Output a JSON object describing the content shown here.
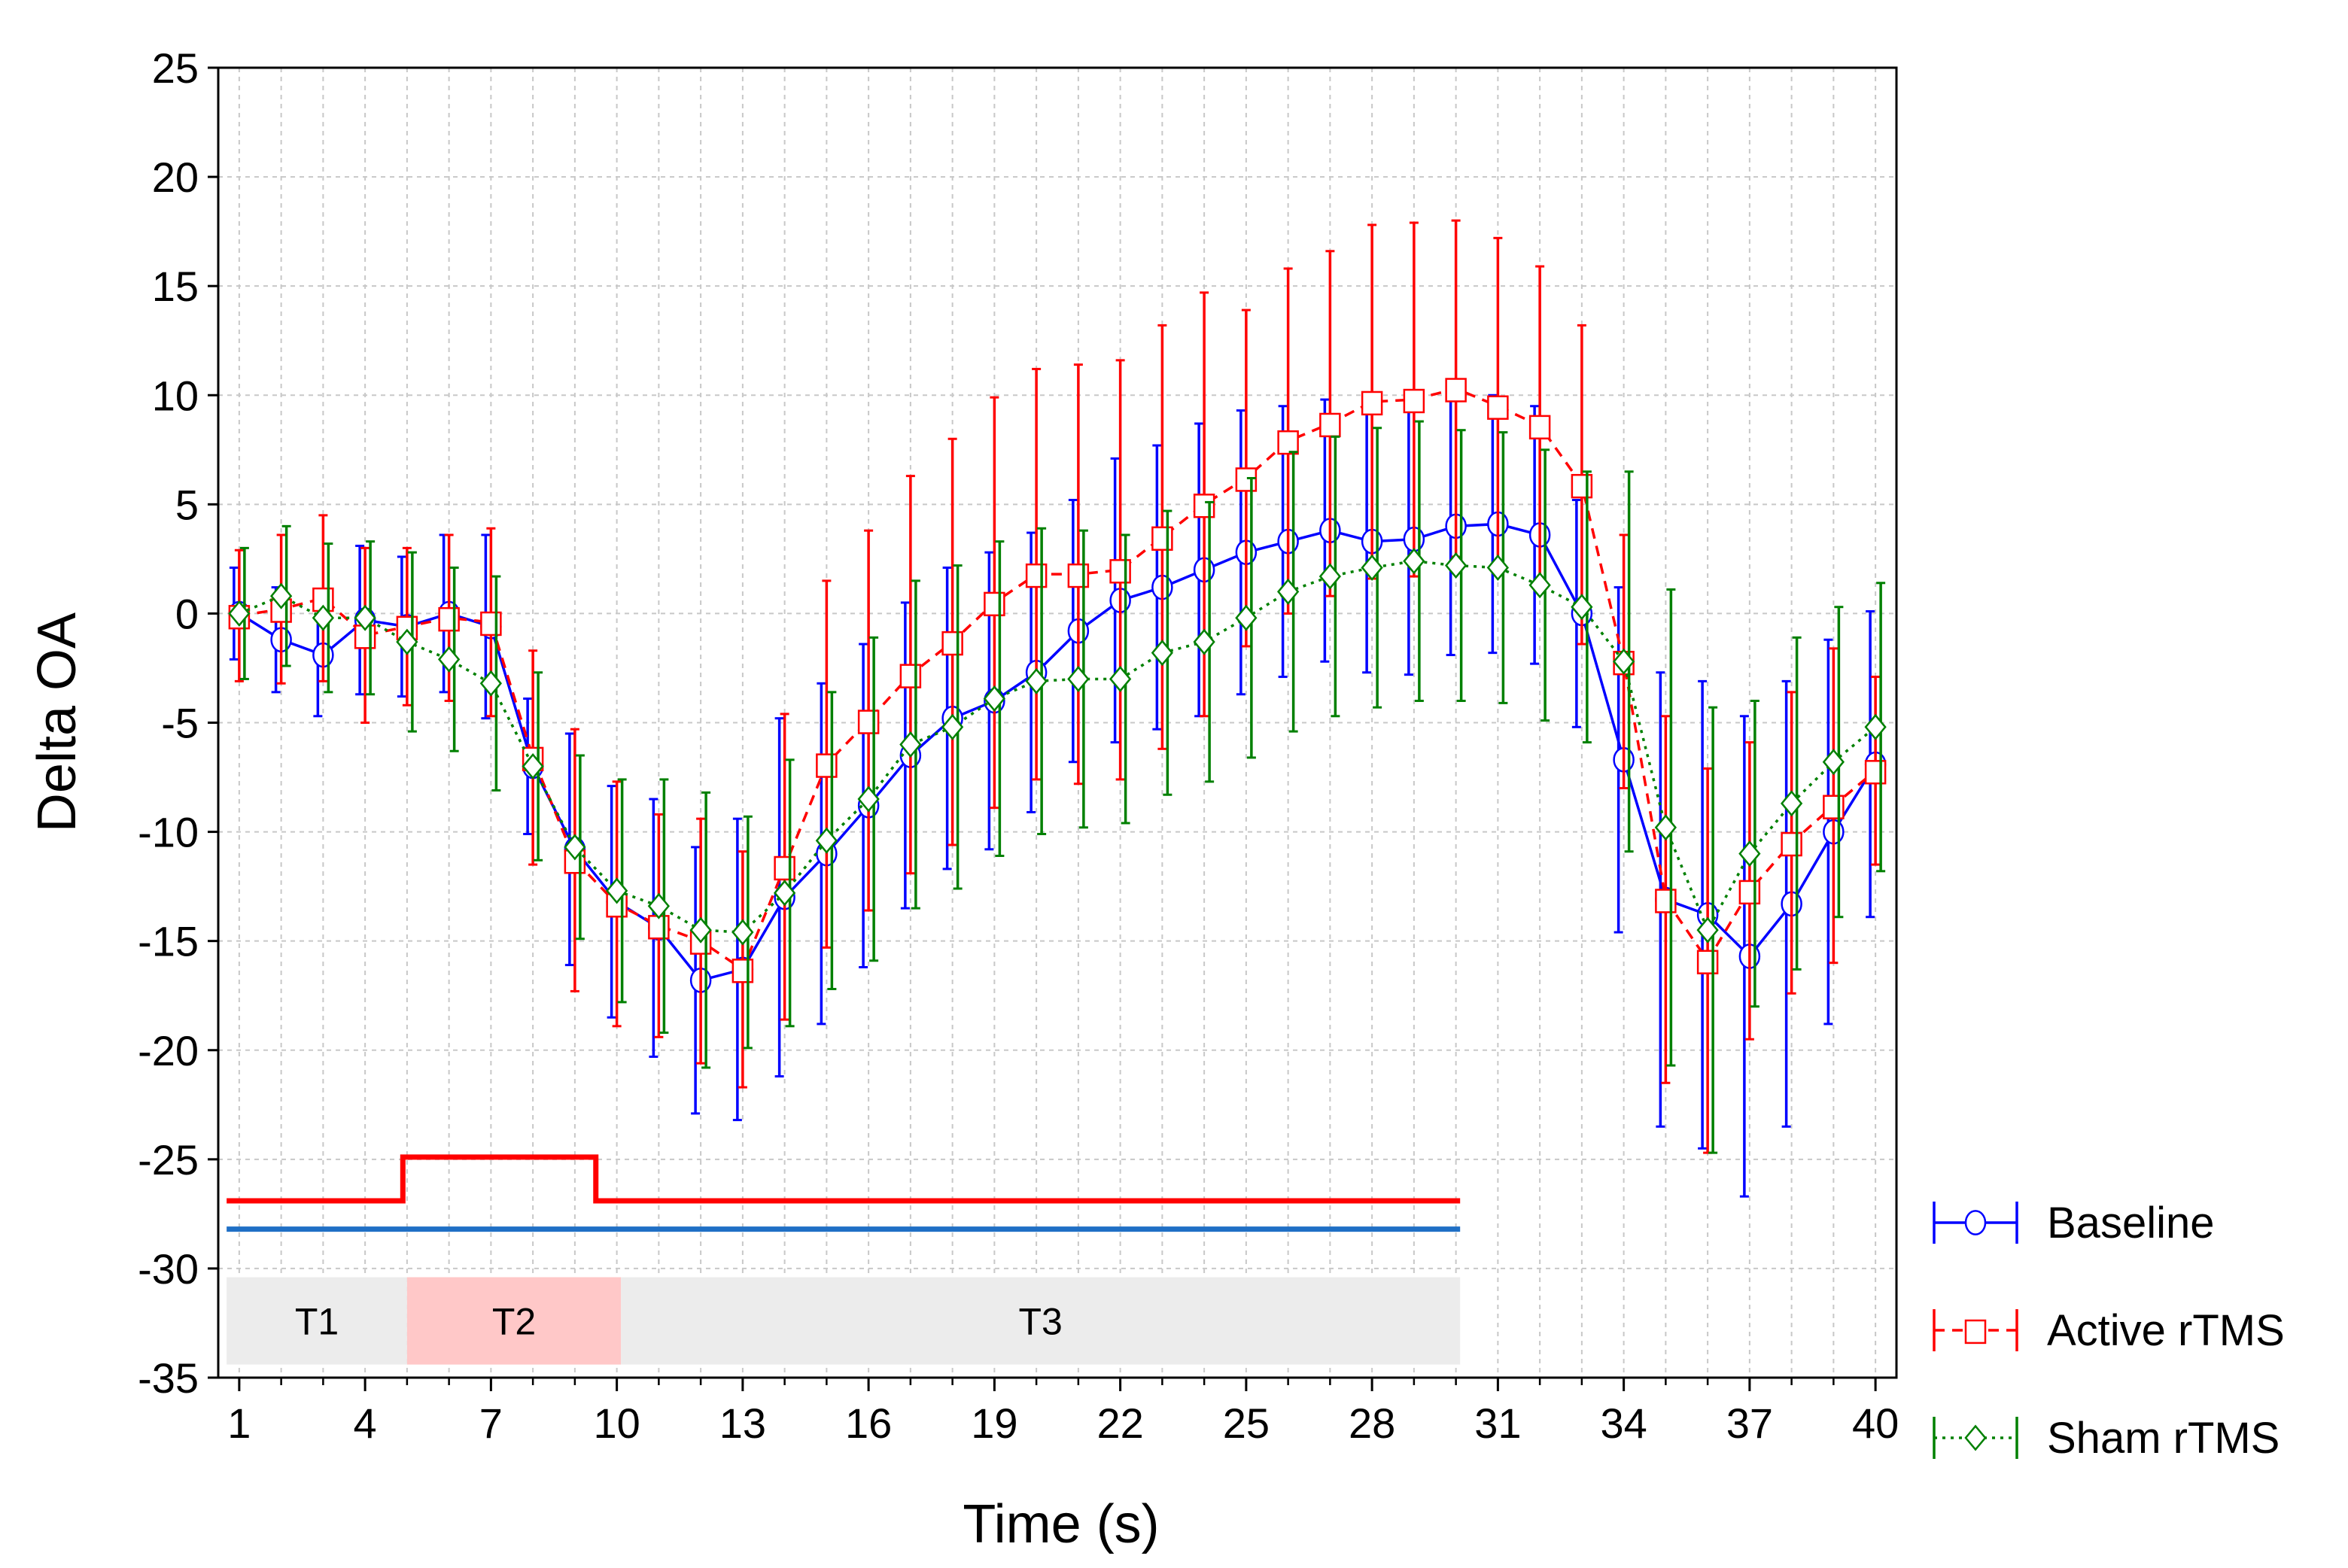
{
  "chart_data": {
    "type": "line",
    "xlabel": "Time (s)",
    "ylabel": "Delta OA",
    "xlim": [
      0.5,
      40.5
    ],
    "ylim": [
      -35,
      25
    ],
    "xticks": [
      1,
      4,
      7,
      10,
      13,
      16,
      19,
      22,
      25,
      28,
      31,
      34,
      37,
      40
    ],
    "yticks": [
      25,
      20,
      15,
      10,
      5,
      0,
      -5,
      -10,
      -15,
      -20,
      -25,
      -30,
      -35
    ],
    "grid": true,
    "legend_position": "right",
    "x": [
      1,
      2,
      3,
      4,
      5,
      6,
      7,
      8,
      9,
      10,
      11,
      12,
      13,
      14,
      15,
      16,
      17,
      18,
      19,
      20,
      21,
      22,
      23,
      24,
      25,
      26,
      27,
      28,
      29,
      30,
      31,
      32,
      33,
      34,
      35,
      36,
      37,
      38,
      39,
      40
    ],
    "series": [
      {
        "name": "Baseline",
        "color": "#0000ff",
        "line_style": "solid",
        "marker": "circle",
        "values": [
          0,
          -1.2,
          -1.9,
          -0.3,
          -0.6,
          0,
          -0.6,
          -7,
          -10.8,
          -13.2,
          -14.4,
          -16.8,
          -16.3,
          -13,
          -11,
          -8.8,
          -6.5,
          -4.8,
          -4,
          -2.7,
          -0.8,
          0.6,
          1.2,
          2,
          2.8,
          3.3,
          3.8,
          3.3,
          3.4,
          4.0,
          4.1,
          3.6,
          0,
          -6.7,
          -13.1,
          -13.8,
          -15.7,
          -13.3,
          -10,
          -6.9
        ],
        "error": [
          2.1,
          2.4,
          2.8,
          3.4,
          3.2,
          3.6,
          4.2,
          3.1,
          5.3,
          5.3,
          5.9,
          6.1,
          6.9,
          8.2,
          7.8,
          7.4,
          7.0,
          6.9,
          6.8,
          6.4,
          6.0,
          6.5,
          6.5,
          6.7,
          6.5,
          6.2,
          6.0,
          6.0,
          6.2,
          5.9,
          5.9,
          5.9,
          5.2,
          7.9,
          10.4,
          10.7,
          11.0,
          10.2,
          8.8,
          7.0
        ]
      },
      {
        "name": "Active rTMS",
        "color": "#ff0000",
        "line_style": "dashed",
        "marker": "square",
        "values": [
          -0.1,
          0.2,
          0.7,
          -1,
          -0.6,
          -0.2,
          -0.4,
          -6.6,
          -11.3,
          -13.3,
          -14.3,
          -15,
          -16.3,
          -11.6,
          -6.9,
          -4.9,
          -2.8,
          -1.3,
          0.5,
          1.8,
          1.8,
          2.0,
          3.5,
          5.0,
          6.2,
          7.9,
          8.7,
          9.7,
          9.8,
          10.3,
          9.5,
          8.6,
          5.9,
          -2.2,
          -13.1,
          -15.9,
          -12.7,
          -10.5,
          -8.8,
          -7.2
        ],
        "error": [
          3.0,
          3.4,
          3.8,
          4.0,
          3.6,
          3.8,
          4.3,
          4.9,
          6.0,
          5.6,
          5.1,
          5.6,
          5.4,
          7.0,
          8.4,
          8.7,
          9.1,
          9.3,
          9.4,
          9.4,
          9.6,
          9.6,
          9.7,
          9.7,
          7.7,
          7.9,
          7.9,
          8.1,
          8.1,
          7.7,
          7.7,
          7.3,
          7.3,
          5.8,
          8.4,
          8.8,
          6.8,
          6.9,
          7.2,
          4.3
        ]
      },
      {
        "name": "Sham rTMS",
        "color": "#008000",
        "line_style": "dotted",
        "marker": "diamond",
        "values": [
          0,
          0.8,
          -0.2,
          -0.2,
          -1.3,
          -2.1,
          -3.2,
          -7.0,
          -10.7,
          -12.7,
          -13.4,
          -14.5,
          -14.6,
          -12.8,
          -10.4,
          -8.5,
          -6.0,
          -5.2,
          -3.9,
          -3.1,
          -3.0,
          -3.0,
          -1.8,
          -1.3,
          -0.2,
          1.0,
          1.7,
          2.1,
          2.4,
          2.2,
          2.1,
          1.3,
          0.3,
          -2.2,
          -9.8,
          -14.5,
          -11.0,
          -8.7,
          -6.8,
          -5.2
        ],
        "error": [
          3.0,
          3.2,
          3.4,
          3.5,
          4.1,
          4.2,
          4.9,
          4.3,
          4.2,
          5.1,
          5.8,
          6.3,
          5.3,
          6.1,
          6.8,
          7.4,
          7.5,
          7.4,
          7.2,
          7.0,
          6.8,
          6.6,
          6.5,
          6.4,
          6.4,
          6.4,
          6.4,
          6.4,
          6.4,
          6.2,
          6.2,
          6.2,
          6.2,
          8.7,
          10.9,
          10.2,
          7.0,
          7.6,
          7.1,
          6.6
        ]
      }
    ],
    "stimulus_lines": [
      {
        "color": "#ff0000",
        "segments": [
          [
            0.7,
            -26.9
          ],
          [
            4.9,
            -26.9
          ],
          [
            4.9,
            -24.9
          ],
          [
            9.5,
            -24.9
          ],
          [
            9.5,
            -26.9
          ],
          [
            30.1,
            -26.9
          ]
        ]
      },
      {
        "color": "#1f6fc5",
        "segments": [
          [
            0.7,
            -28.2
          ],
          [
            30.1,
            -28.2
          ]
        ]
      }
    ],
    "phases": [
      {
        "label": "T1",
        "start": 0.7,
        "end": 5.0,
        "color": "#ececec"
      },
      {
        "label": "T2",
        "start": 5.0,
        "end": 10.1,
        "color": "#ffc8c8"
      },
      {
        "label": "T3",
        "start": 10.1,
        "end": 30.1,
        "color": "#ececec"
      }
    ]
  }
}
